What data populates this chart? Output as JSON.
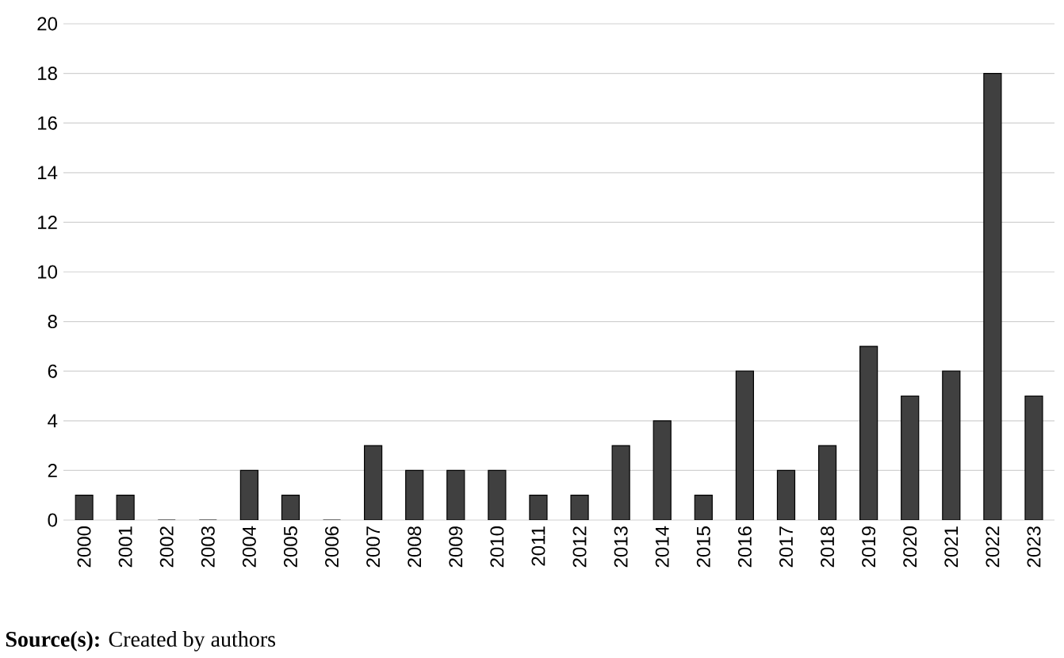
{
  "chart_data": {
    "type": "bar",
    "categories": [
      "2000",
      "2001",
      "2002",
      "2003",
      "2004",
      "2005",
      "2006",
      "2007",
      "2008",
      "2009",
      "2010",
      "2011",
      "2012",
      "2013",
      "2014",
      "2015",
      "2016",
      "2017",
      "2018",
      "2019",
      "2020",
      "2021",
      "2022",
      "2023"
    ],
    "values": [
      1,
      1,
      0,
      0,
      2,
      1,
      0,
      3,
      2,
      2,
      2,
      1,
      1,
      3,
      4,
      1,
      6,
      2,
      3,
      7,
      5,
      6,
      18,
      5
    ],
    "color": "#404040",
    "ylim": [
      0,
      20
    ],
    "yticks": [
      0,
      2,
      4,
      6,
      8,
      10,
      12,
      14,
      16,
      18,
      20
    ],
    "grid": "y",
    "annotations": [
      "**Source(s):** Created by authors"
    ]
  }
}
